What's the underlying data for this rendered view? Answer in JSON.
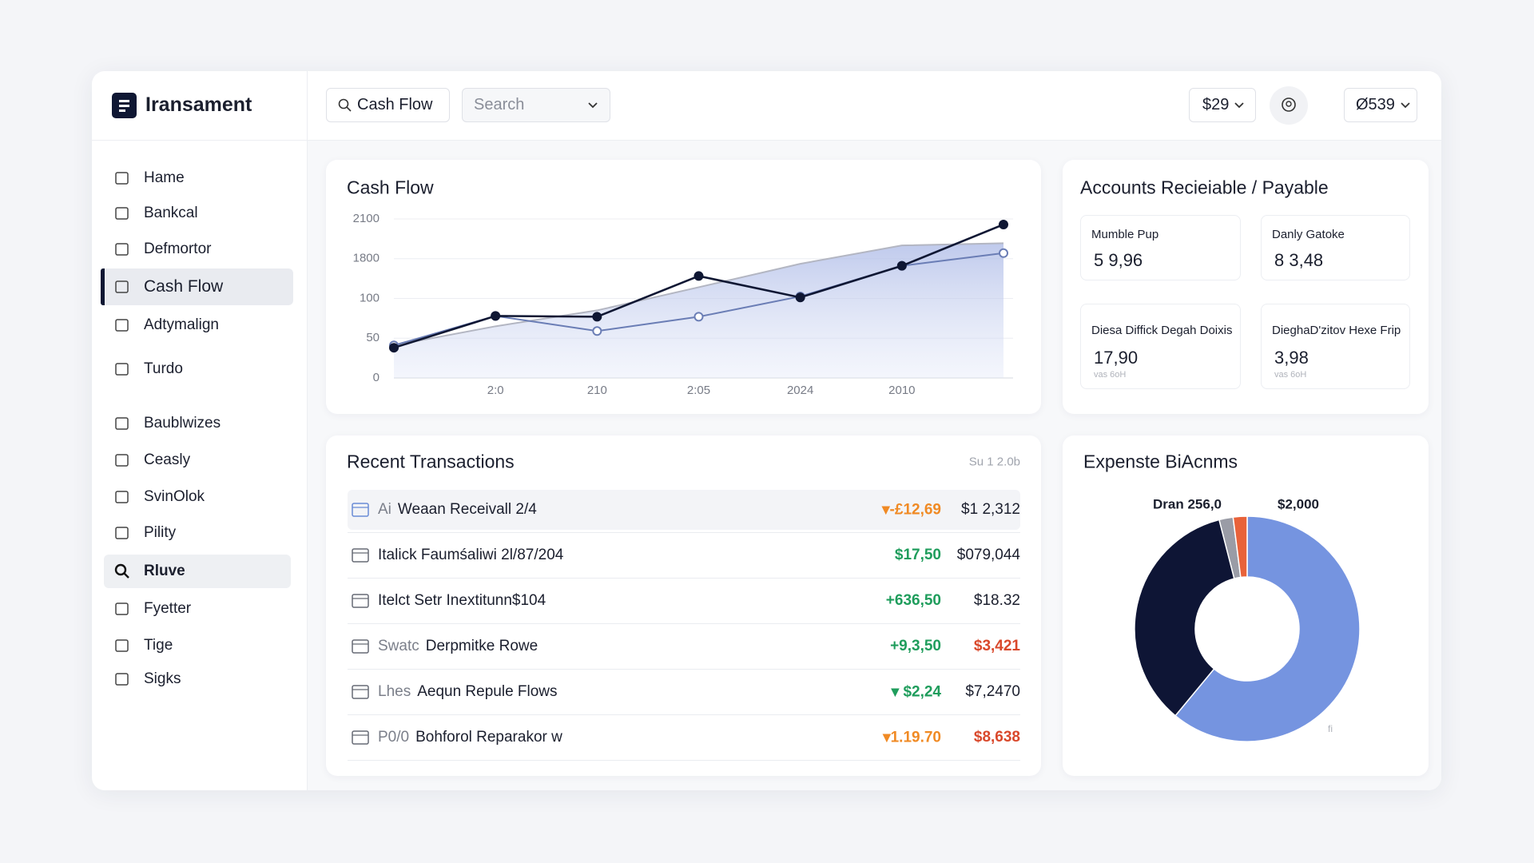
{
  "header": {
    "logo": "Iransament",
    "search_chip": "Cash Flow",
    "search_placeholder": "Search",
    "balance": "$29",
    "account": "Ø539"
  },
  "sidebar": {
    "items": [
      "Hame",
      "Bankcal",
      "Defmortor",
      "Cash Flow",
      "Adtymalign",
      "Turdo",
      "Baublwizes",
      "Ceasly",
      "SvinOlok",
      "Pility",
      "Rluve",
      "Fyetter",
      "Tige",
      "Sigks"
    ],
    "active": 3,
    "selected": 10
  },
  "cash_flow": {
    "type": "line",
    "title": "Cash Flow",
    "categories": [
      null,
      "2:0",
      "210",
      "2:05",
      "2024",
      "2010",
      null
    ],
    "series": [
      {
        "color": "#b3b6c2",
        "values": [
          41,
          65,
          85,
          580,
          1582,
          1900,
          1917
        ],
        "area": true
      },
      {
        "color": "#6a7db5",
        "values": [
          41,
          78,
          59,
          77,
          187,
          1495,
          1842
        ],
        "marker": "open"
      },
      {
        "color": "#0f1733",
        "values": [
          38,
          78,
          77,
          1059,
          144,
          1495,
          2058
        ],
        "marker": "filled"
      }
    ],
    "ylim": [
      0,
      2100
    ],
    "yticks": [
      0,
      50,
      100,
      1800,
      2100
    ],
    "scale": "piecewise",
    "grid": true
  },
  "receivable_payable": {
    "title": "Accounts Recieiable / Payable",
    "cards": [
      {
        "label": "Mumble Pup",
        "value": "5 9,96"
      },
      {
        "label": "Danly Gatoke",
        "value": "8 3,48"
      },
      {
        "label": "Diesa Diffick Degah Doixis",
        "value": "17,90",
        "note": "vas 6oH"
      },
      {
        "label": "DieghaD'zitov Hexe Frip",
        "value": "3,98",
        "note": "vas 6oH"
      }
    ]
  },
  "transactions": {
    "title": "Recent Transactions",
    "period": "Su 1 2.0b",
    "rows": [
      {
        "prefix": "Ai",
        "description": "Weaan Receivall 2/4",
        "change": "▾-£12,69",
        "change_color": "#f08a24",
        "amount": "$1 2,312",
        "amount_color": "#1b1f2e"
      },
      {
        "description": "Italick Faumśaliwi 2l/87/204",
        "change": "$17,50",
        "change_color": "#1f9d5c",
        "amount": "$079,044",
        "amount_color": "#1b1f2e"
      },
      {
        "description": "Itelct Setr Inextitunn$104",
        "change": "+636,50",
        "change_color": "#1f9d5c",
        "amount": "$18.32",
        "amount_color": "#1b1f2e"
      },
      {
        "prefix": "Swatc",
        "description": "Derpmitke Rowe",
        "change": "+9,3,50",
        "change_color": "#1f9d5c",
        "amount": "$3,421",
        "amount_color": "#d9482b"
      },
      {
        "prefix": "Lhes",
        "description": "Aequn Repule Flows",
        "change": "▾ $2,24",
        "change_color": "#1f9d5c",
        "amount": "$7,2470",
        "amount_color": "#1b1f2e"
      },
      {
        "prefix": "P0/0",
        "description": "Bohforol Reparakor w",
        "change": "▾1.19.70",
        "change_color": "#f08a24",
        "amount": "$8,638",
        "amount_color": "#d9482b"
      }
    ]
  },
  "expenses": {
    "type": "pie",
    "title": "Expenste BiAcnms",
    "labels": [
      "Dran 256,0",
      "$2,000"
    ],
    "note": "fi",
    "hole": true,
    "series": [
      {
        "color": "#7594e0",
        "values": [
          61
        ]
      },
      {
        "color": "#0e1535",
        "values": [
          35
        ]
      },
      {
        "color": "#9a9ca6",
        "values": [
          2
        ]
      },
      {
        "color": "#e8623a",
        "values": [
          2
        ]
      }
    ]
  }
}
